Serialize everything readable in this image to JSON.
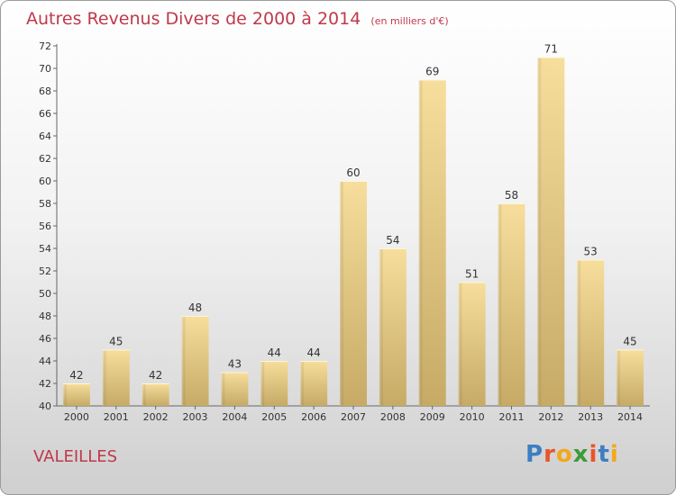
{
  "chart_data": {
    "type": "bar",
    "title": "Autres Revenus Divers de 2000 à 2014",
    "subtitle": "(en milliers d'€)",
    "categories": [
      "2000",
      "2001",
      "2002",
      "2003",
      "2004",
      "2005",
      "2006",
      "2007",
      "2008",
      "2009",
      "2010",
      "2011",
      "2012",
      "2013",
      "2014"
    ],
    "values": [
      42,
      45,
      42,
      48,
      43,
      44,
      44,
      60,
      54,
      69,
      51,
      58,
      71,
      53,
      45
    ],
    "ylim": [
      40,
      72
    ],
    "yticks": [
      40,
      42,
      44,
      46,
      48,
      50,
      52,
      54,
      56,
      58,
      60,
      62,
      64,
      66,
      68,
      70,
      72
    ],
    "grid": false,
    "legend": "none",
    "colors": {
      "bar_light": "#f6dc98",
      "bar_dark": "#c8ad6a",
      "title": "#c0394b"
    }
  },
  "location": "VALEILLES",
  "logo": {
    "text": "Proxiti",
    "letter_colors": [
      "#3d7ec4",
      "#e8562a",
      "#f2a81d",
      "#3d9a3a",
      "#e8562a",
      "#3d7ec4",
      "#f2a81d"
    ]
  }
}
